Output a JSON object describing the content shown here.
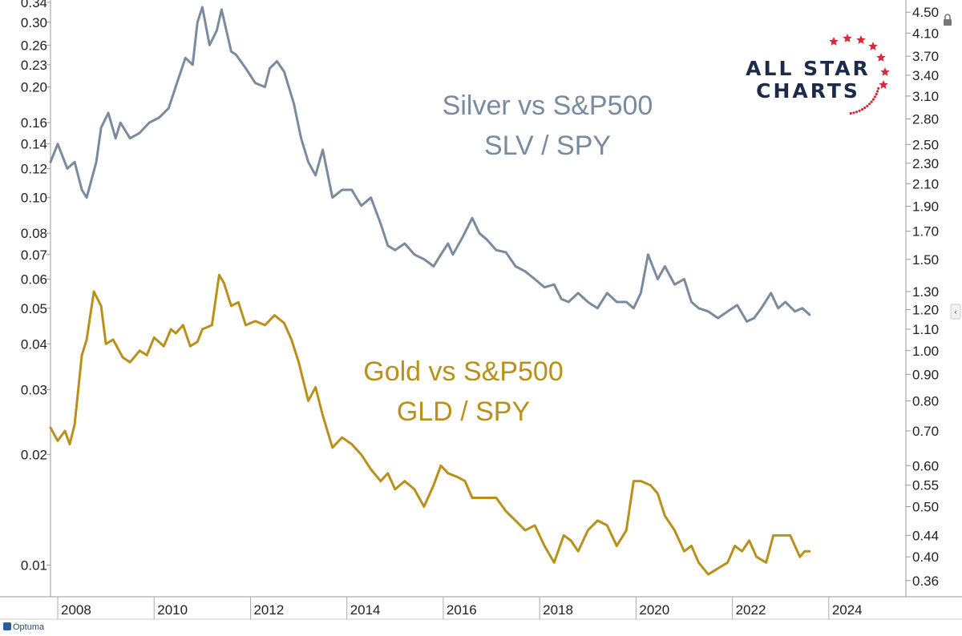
{
  "chart_data": {
    "type": "line",
    "title": "",
    "x_ticks": [
      "2008",
      "2010",
      "2012",
      "2014",
      "2016",
      "2018",
      "2020",
      "2022",
      "2024"
    ],
    "xlim": [
      2007.85,
      2025.6
    ],
    "left_axis": {
      "scale": "log",
      "ylim": [
        0.0082,
        0.345
      ],
      "ticks": [
        "0.34",
        "0.30",
        "0.26",
        "0.23",
        "0.20",
        "0.16",
        "0.14",
        "0.12",
        "0.10",
        "0.08",
        "0.07",
        "0.06",
        "0.05",
        "0.04",
        "0.03",
        "0.02",
        "0.01"
      ]
    },
    "right_axis": {
      "scale": "log",
      "ylim": [
        0.335,
        4.75
      ],
      "ticks": [
        "4.50",
        "4.10",
        "3.70",
        "3.40",
        "3.10",
        "2.80",
        "2.50",
        "2.30",
        "2.10",
        "1.90",
        "1.70",
        "1.50",
        "1.30",
        "1.20",
        "1.10",
        "1.00",
        "0.90",
        "0.80",
        "0.70",
        "0.60",
        "0.55",
        "0.50",
        "0.44",
        "0.40",
        "0.36"
      ]
    },
    "series": [
      {
        "name": "SLV / SPY",
        "label": "Silver vs S&P500",
        "sublabel": "SLV / SPY",
        "color": "#7a8b9d",
        "axis": "left",
        "x": [
          2007.85,
          2008.0,
          2008.2,
          2008.35,
          2008.5,
          2008.6,
          2008.8,
          2008.9,
          2009.05,
          2009.2,
          2009.3,
          2009.5,
          2009.7,
          2009.9,
          2010.1,
          2010.3,
          2010.5,
          2010.65,
          2010.8,
          2010.9,
          2011.0,
          2011.15,
          2011.3,
          2011.4,
          2011.6,
          2011.7,
          2011.9,
          2012.1,
          2012.3,
          2012.4,
          2012.55,
          2012.7,
          2012.9,
          2013.05,
          2013.2,
          2013.35,
          2013.5,
          2013.7,
          2013.9,
          2014.1,
          2014.3,
          2014.5,
          2014.7,
          2014.85,
          2015.0,
          2015.2,
          2015.4,
          2015.6,
          2015.8,
          2015.95,
          2016.1,
          2016.2,
          2016.4,
          2016.6,
          2016.75,
          2016.9,
          2017.1,
          2017.3,
          2017.5,
          2017.7,
          2017.9,
          2018.1,
          2018.3,
          2018.45,
          2018.6,
          2018.8,
          2019.0,
          2019.2,
          2019.4,
          2019.6,
          2019.8,
          2019.95,
          2020.1,
          2020.25,
          2020.45,
          2020.6,
          2020.8,
          2021.0,
          2021.15,
          2021.3,
          2021.5,
          2021.7,
          2021.9,
          2022.1,
          2022.3,
          2022.45,
          2022.6,
          2022.8,
          2022.95,
          2023.1,
          2023.3,
          2023.45,
          2023.6
        ],
        "values": [
          0.125,
          0.14,
          0.12,
          0.125,
          0.105,
          0.1,
          0.125,
          0.155,
          0.17,
          0.145,
          0.16,
          0.145,
          0.15,
          0.16,
          0.165,
          0.175,
          0.21,
          0.24,
          0.23,
          0.3,
          0.33,
          0.26,
          0.285,
          0.325,
          0.25,
          0.245,
          0.225,
          0.205,
          0.2,
          0.225,
          0.235,
          0.22,
          0.18,
          0.145,
          0.125,
          0.115,
          0.135,
          0.1,
          0.105,
          0.105,
          0.095,
          0.1,
          0.085,
          0.074,
          0.072,
          0.075,
          0.07,
          0.068,
          0.065,
          0.07,
          0.075,
          0.07,
          0.078,
          0.088,
          0.08,
          0.077,
          0.072,
          0.071,
          0.065,
          0.063,
          0.06,
          0.057,
          0.058,
          0.053,
          0.052,
          0.055,
          0.052,
          0.05,
          0.055,
          0.052,
          0.052,
          0.05,
          0.055,
          0.07,
          0.06,
          0.065,
          0.058,
          0.06,
          0.052,
          0.05,
          0.049,
          0.047,
          0.049,
          0.051,
          0.046,
          0.047,
          0.05,
          0.055,
          0.05,
          0.052,
          0.049,
          0.05,
          0.048
        ]
      },
      {
        "name": "GLD / SPY",
        "label": "Gold vs S&P500",
        "sublabel": "GLD / SPY",
        "color": "#b8901a",
        "axis": "right",
        "x": [
          2007.85,
          2008.0,
          2008.15,
          2008.25,
          2008.35,
          2008.5,
          2008.6,
          2008.75,
          2008.9,
          2009.0,
          2009.15,
          2009.35,
          2009.5,
          2009.7,
          2009.85,
          2010.0,
          2010.2,
          2010.35,
          2010.45,
          2010.6,
          2010.75,
          2010.9,
          2011.0,
          2011.2,
          2011.35,
          2011.45,
          2011.6,
          2011.75,
          2011.9,
          2012.1,
          2012.3,
          2012.5,
          2012.7,
          2012.85,
          2013.0,
          2013.2,
          2013.35,
          2013.5,
          2013.7,
          2013.9,
          2014.1,
          2014.3,
          2014.5,
          2014.7,
          2014.85,
          2015.0,
          2015.2,
          2015.4,
          2015.6,
          2015.8,
          2015.95,
          2016.1,
          2016.3,
          2016.45,
          2016.6,
          2016.75,
          2016.9,
          2017.1,
          2017.3,
          2017.5,
          2017.7,
          2017.9,
          2018.1,
          2018.3,
          2018.5,
          2018.65,
          2018.8,
          2019.0,
          2019.2,
          2019.4,
          2019.6,
          2019.8,
          2019.95,
          2020.1,
          2020.3,
          2020.45,
          2020.6,
          2020.8,
          2021.0,
          2021.15,
          2021.3,
          2021.5,
          2021.7,
          2021.9,
          2022.05,
          2022.2,
          2022.35,
          2022.5,
          2022.7,
          2022.85,
          2023.0,
          2023.2,
          2023.4,
          2023.5,
          2023.6
        ],
        "values": [
          0.71,
          0.67,
          0.7,
          0.66,
          0.72,
          0.98,
          1.05,
          1.3,
          1.22,
          1.03,
          1.05,
          0.97,
          0.95,
          1.0,
          0.98,
          1.06,
          1.02,
          1.1,
          1.08,
          1.12,
          1.02,
          1.04,
          1.1,
          1.12,
          1.4,
          1.35,
          1.22,
          1.24,
          1.12,
          1.14,
          1.12,
          1.17,
          1.13,
          1.05,
          0.95,
          0.8,
          0.85,
          0.75,
          0.65,
          0.68,
          0.66,
          0.63,
          0.59,
          0.56,
          0.58,
          0.54,
          0.56,
          0.54,
          0.5,
          0.55,
          0.6,
          0.58,
          0.57,
          0.56,
          0.52,
          0.52,
          0.52,
          0.52,
          0.49,
          0.47,
          0.45,
          0.46,
          0.42,
          0.39,
          0.44,
          0.43,
          0.41,
          0.45,
          0.47,
          0.46,
          0.42,
          0.45,
          0.56,
          0.56,
          0.55,
          0.53,
          0.48,
          0.45,
          0.41,
          0.42,
          0.39,
          0.37,
          0.38,
          0.39,
          0.42,
          0.41,
          0.43,
          0.4,
          0.39,
          0.44,
          0.44,
          0.44,
          0.4,
          0.41,
          0.41
        ]
      }
    ],
    "annotations": [
      {
        "series": 0,
        "line1": "Silver vs S&P500",
        "line2": "SLV / SPY"
      },
      {
        "series": 1,
        "line1": "Gold vs S&P500",
        "line2": "GLD / SPY"
      }
    ]
  },
  "logo": {
    "line1": "ALL STAR",
    "line2": "CHARTS",
    "star_color": "#d42a3c",
    "text_color": "#1c2b4a"
  },
  "footer": {
    "brand": "Optuma"
  }
}
